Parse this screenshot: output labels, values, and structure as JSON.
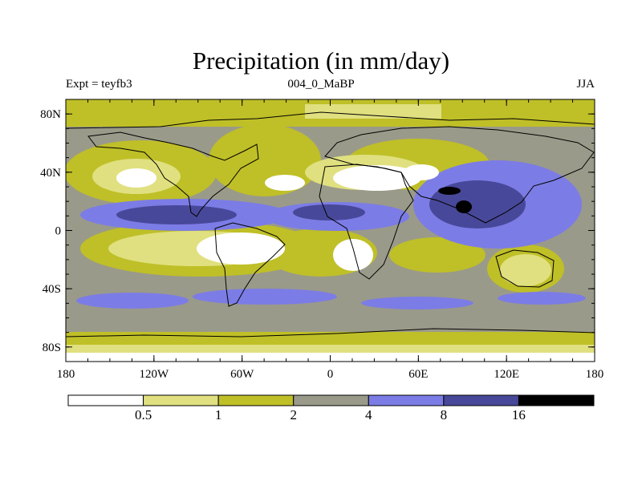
{
  "map": {
    "title": "Precipitation (in mm/day)",
    "subtitle_left": "Expt = teyfb3",
    "subtitle_center": "004_0_MaBP",
    "subtitle_right": "JJA",
    "lat_ticks": [
      {
        "label": "80N",
        "lat": 80
      },
      {
        "label": "40N",
        "lat": 40
      },
      {
        "label": "0",
        "lat": 0
      },
      {
        "label": "40S",
        "lat": -40
      },
      {
        "label": "80S",
        "lat": -80
      }
    ],
    "lon_ticks": [
      {
        "label": "180",
        "lon": -180
      },
      {
        "label": "120W",
        "lon": -120
      },
      {
        "label": "60W",
        "lon": -60
      },
      {
        "label": "0",
        "lon": 0
      },
      {
        "label": "60E",
        "lon": 60
      },
      {
        "label": "120E",
        "lon": 120
      },
      {
        "label": "180",
        "lon": 180
      }
    ],
    "extent": {
      "lon": [
        -180,
        180
      ],
      "lat": [
        -90,
        90
      ]
    }
  },
  "legend": {
    "colors": [
      "#ffffff",
      "#e0e080",
      "#bfbf28",
      "#9a9a8a",
      "#7c7ce6",
      "#48489a",
      "#000000"
    ],
    "labels": [
      "0.5",
      "1",
      "2",
      "4",
      "8",
      "16"
    ]
  }
}
